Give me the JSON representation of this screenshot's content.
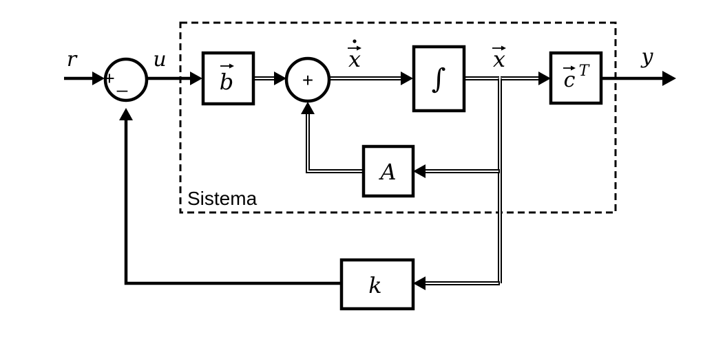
{
  "signals": {
    "r": "r",
    "u": "u",
    "xdot": "x",
    "x": "x",
    "y": "y"
  },
  "summing_junctions": {
    "main": {
      "plus": "+",
      "minus": "_"
    },
    "inner": {
      "plus": "+"
    }
  },
  "blocks": {
    "b": "b",
    "integrator": "∫",
    "ct_base": "c",
    "ct_sup": "T",
    "A": "A",
    "k": "k"
  },
  "system_label": "Sistema"
}
